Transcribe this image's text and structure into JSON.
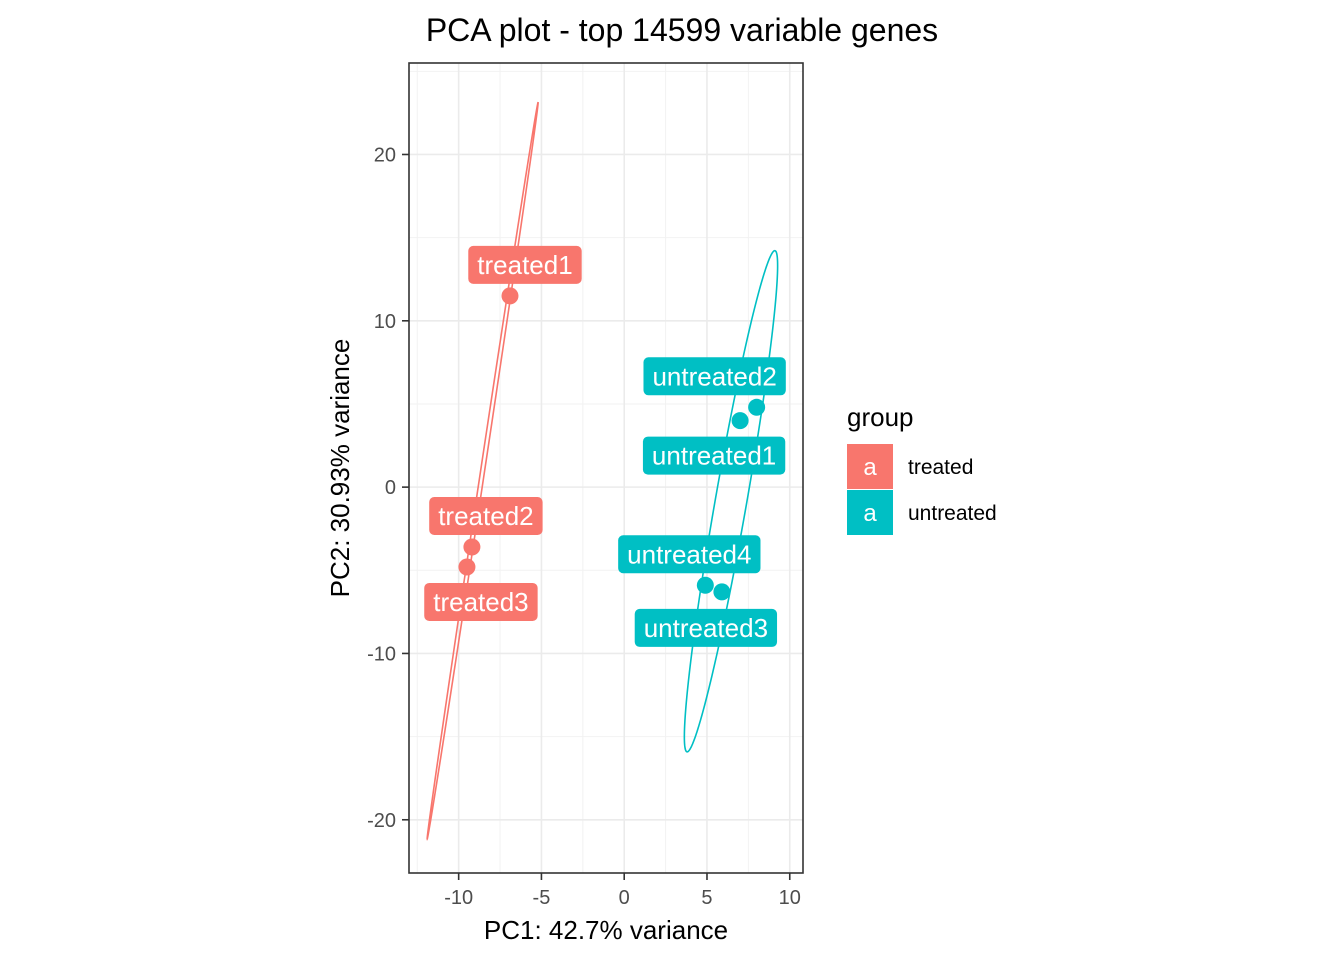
{
  "chart_data": {
    "type": "scatter",
    "title": "PCA plot - top 14599 variable genes",
    "xlabel": "PC1: 42.7% variance",
    "ylabel": "PC2: 30.93% variance",
    "xlim": [
      -13,
      10.8
    ],
    "ylim": [
      -23.2,
      25.5
    ],
    "x_ticks": [
      -10,
      -5,
      0,
      5,
      10
    ],
    "y_ticks": [
      -20,
      -10,
      0,
      10,
      20
    ],
    "x_tick_labels": [
      "-10",
      "-5",
      "0",
      "5",
      "10"
    ],
    "y_tick_labels": [
      "-20",
      "-10",
      "0",
      "10",
      "20"
    ],
    "grid": true,
    "legend": {
      "title": "group",
      "position": "right",
      "key_glyph": "a",
      "entries": [
        {
          "label": "treated",
          "color": "#F8766D"
        },
        {
          "label": "untreated",
          "color": "#00BFC4"
        }
      ]
    },
    "series": [
      {
        "name": "treated",
        "color": "#F8766D",
        "points": [
          {
            "label": "treated1",
            "x": -6.9,
            "y": 11.5
          },
          {
            "label": "treated2",
            "x": -9.2,
            "y": -3.6
          },
          {
            "label": "treated3",
            "x": -9.5,
            "y": -4.8
          }
        ],
        "ellipse": {
          "cx": -8.55,
          "cy": 1.0,
          "semi_major": 22.4,
          "semi_minor": 0.12,
          "angle_deg": 81.4
        }
      },
      {
        "name": "untreated",
        "color": "#00BFC4",
        "points": [
          {
            "label": "untreated1",
            "x": 7.0,
            "y": 4.0
          },
          {
            "label": "untreated2",
            "x": 8.0,
            "y": 4.8
          },
          {
            "label": "untreated3",
            "x": 5.9,
            "y": -6.3
          },
          {
            "label": "untreated4",
            "x": 4.9,
            "y": -5.9
          }
        ],
        "ellipse": {
          "cx": 6.45,
          "cy": -0.85,
          "semi_major": 15.3,
          "semi_minor": 0.95,
          "angle_deg": 80.0
        }
      }
    ]
  }
}
